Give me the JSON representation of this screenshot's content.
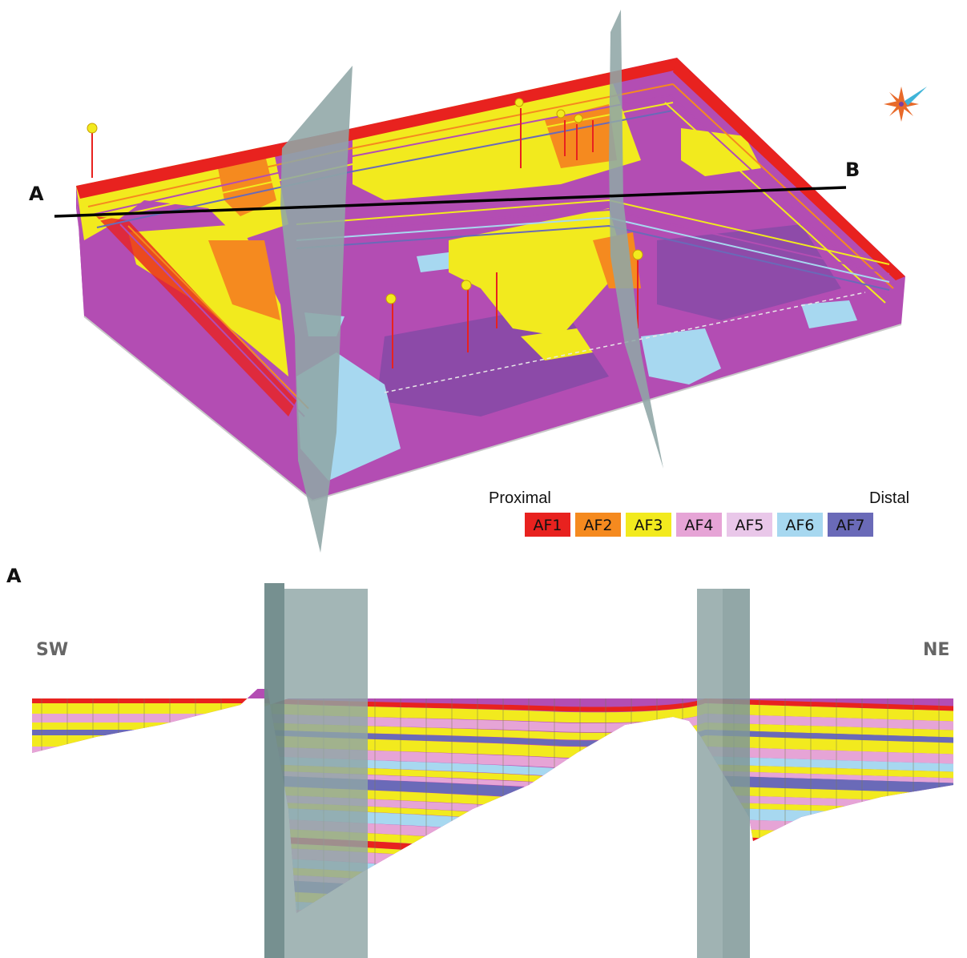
{
  "upper_view": {
    "section_line_start_label": "A",
    "section_line_end_label": "B",
    "legend": {
      "proximal_label": "Proximal",
      "distal_label": "Distal",
      "classes": [
        {
          "label": "AF1",
          "color": "#e8221f"
        },
        {
          "label": "AF2",
          "color": "#f58a1f"
        },
        {
          "label": "AF3",
          "color": "#f2ea1e"
        },
        {
          "label": "AF4",
          "color": "#e6a4d6"
        },
        {
          "label": "AF5",
          "color": "#e9c7e9"
        },
        {
          "label": "AF6",
          "color": "#a7d8f0"
        },
        {
          "label": "AF7",
          "color": "#6a6ab8"
        }
      ]
    }
  },
  "cross_section": {
    "panel_label": "A",
    "left_direction": "SW",
    "right_direction": "NE"
  },
  "colors": {
    "fault_plane": "#8fa6a6",
    "fault_plane_dark": "#6f8a8a",
    "base_magenta": "#b14fb0",
    "section_line": "#000000"
  }
}
